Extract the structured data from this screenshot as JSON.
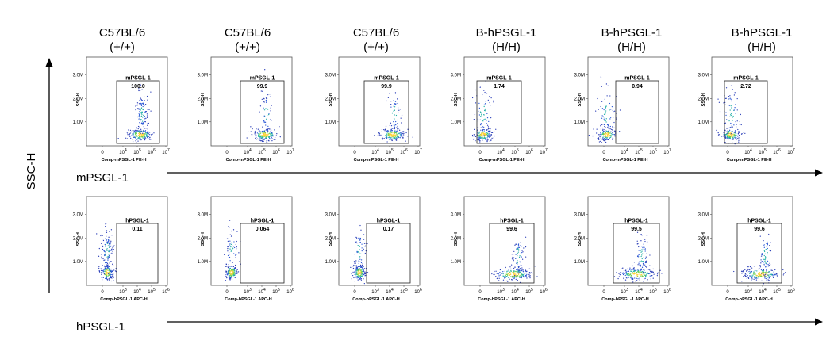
{
  "columns": [
    {
      "line1": "C57BL/6",
      "line2": "(+/+)"
    },
    {
      "line1": "C57BL/6",
      "line2": "(+/+)"
    },
    {
      "line1": "C57BL/6",
      "line2": "(+/+)"
    },
    {
      "line1": "B-hPSGL-1",
      "line2": "(H/H)"
    },
    {
      "line1": "B-hPSGL-1",
      "line2": "(H/H)"
    },
    {
      "line1": "B-hPSGL-1",
      "line2": "(H/H)"
    }
  ],
  "y_axis_label": "SSC-H",
  "row_labels": [
    "mPSGL-1",
    "hPSGL-1"
  ],
  "chart_data": [
    {
      "type": "scatter",
      "row": "mPSGL-1",
      "ylabel": "SSC-H",
      "xlabel": "Comp-mPSGL-1 PE-H",
      "y_ticks": [
        "1.0M",
        "2.0M",
        "3.0M"
      ],
      "x_ticks": [
        "0",
        "10^4",
        "10^5",
        "10^6",
        "10^7"
      ],
      "gate_label": "mPSGL-1",
      "gate_values": [
        "100.0",
        "99.9",
        "99.9",
        "1.74",
        "0.94",
        "2.72"
      ]
    },
    {
      "type": "scatter",
      "row": "hPSGL-1",
      "ylabel": "SSC-H",
      "xlabel": "Comp-hPSGL-1 APC-H",
      "y_ticks": [
        "1.0M",
        "2.0M",
        "3.0M"
      ],
      "x_ticks": [
        "0",
        "10^3",
        "10^4",
        "10^5",
        "10^6"
      ],
      "gate_label": "hPSGL-1",
      "gate_values": [
        "0.11",
        "0.064",
        "0.17",
        "99.6",
        "99.5",
        "99.6"
      ]
    }
  ]
}
